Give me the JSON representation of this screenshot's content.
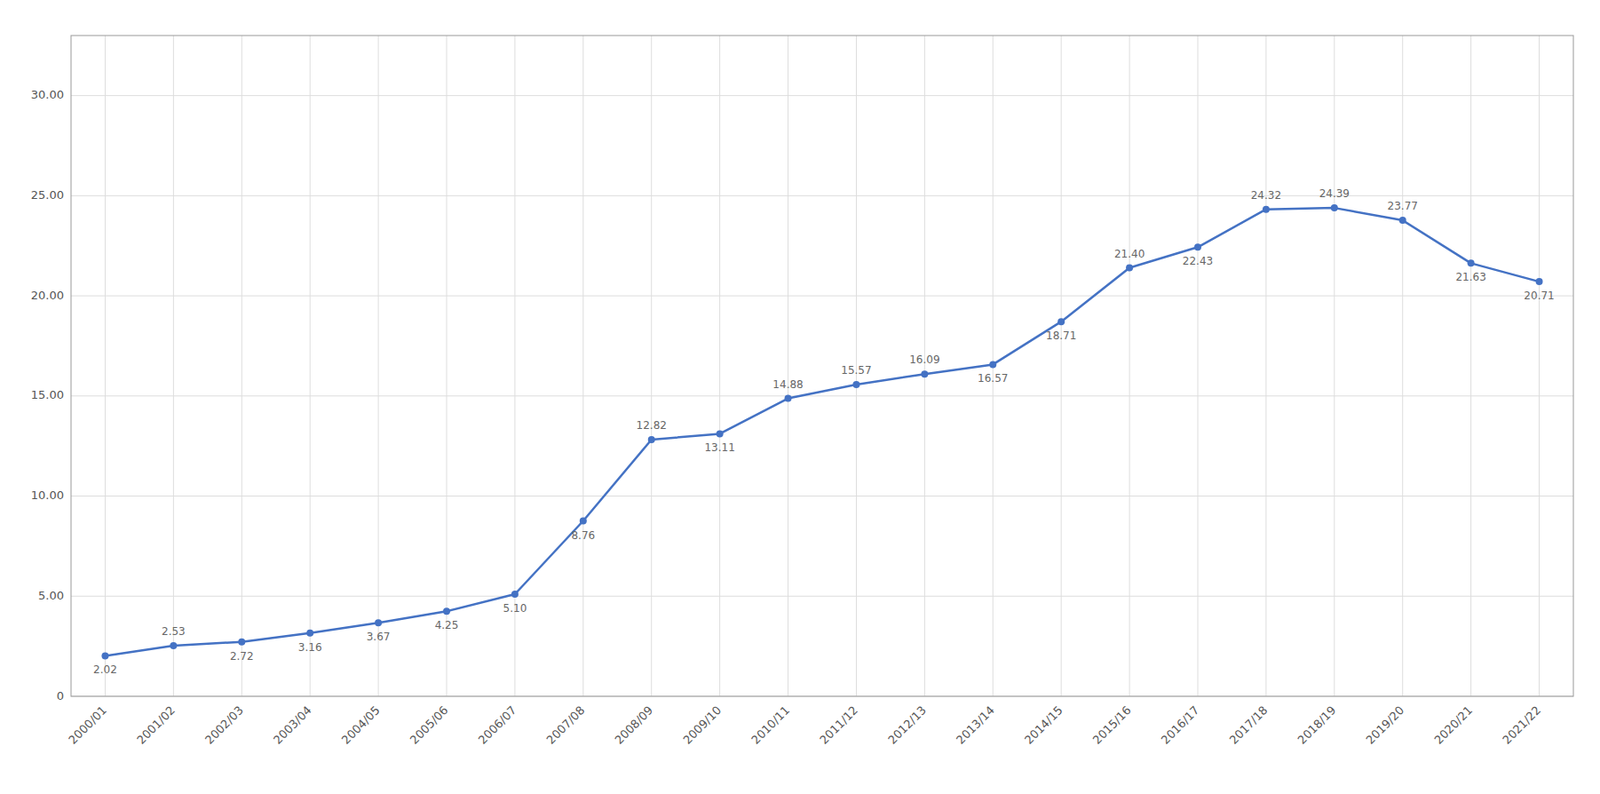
{
  "chart_data": {
    "type": "line",
    "categories": [
      "2000/01",
      "2001/02",
      "2002/03",
      "2003/04",
      "2004/05",
      "2005/06",
      "2006/07",
      "2007/08",
      "2008/09",
      "2009/10",
      "2010/11",
      "2011/12",
      "2012/13",
      "2013/14",
      "2014/15",
      "2015/16",
      "2016/17",
      "2017/18",
      "2018/19",
      "2019/20",
      "2020/21",
      "2021/22"
    ],
    "values": [
      2.02,
      2.53,
      2.72,
      3.16,
      3.67,
      4.25,
      5.1,
      8.76,
      12.82,
      13.11,
      14.88,
      15.57,
      16.09,
      16.57,
      18.71,
      21.4,
      22.43,
      24.32,
      24.39,
      23.77,
      21.63,
      20.71
    ],
    "value_labels": [
      "2.02",
      "2.53",
      "2.72",
      "3.16",
      "3.67",
      "4.25",
      "5.10",
      "8.76",
      "12.82",
      "13.11",
      "14.88",
      "15.57",
      "16.09",
      "16.57",
      "18.71",
      "21.40",
      "22.43",
      "24.32",
      "24.39",
      "23.77",
      "21.63",
      "20.71"
    ],
    "color": "#4472C4",
    "marker": "circle",
    "ylim": [
      0,
      33
    ],
    "yticks": [
      0,
      {
        "value": 5,
        "label": "5.00"
      },
      {
        "value": 10,
        "label": "10.00"
      },
      {
        "value": 15,
        "label": "15.00"
      },
      {
        "value": 20,
        "label": "20.00"
      },
      {
        "value": 25,
        "label": "25.00"
      },
      {
        "value": 30,
        "label": "30.00"
      }
    ],
    "grid": true,
    "data_labels": true
  }
}
